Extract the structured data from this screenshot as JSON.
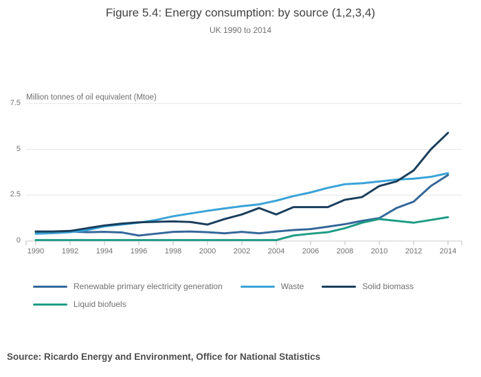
{
  "header": {
    "title": "Figure 5.4: Energy consumption: by source (1,2,3,4)",
    "subtitle": "UK 1990 to 2014"
  },
  "chart_data": {
    "type": "line",
    "title": "Figure 5.4: Energy consumption: by source (1,2,3,4)",
    "subtitle": "UK 1990 to 2014",
    "ylabel": "Million tonnes of oil equivalent (Mtoe)",
    "xlabel": "",
    "grid": "horizontal",
    "legend_position": "bottom-left",
    "xlim": [
      1990,
      2014
    ],
    "ylim": [
      0,
      7.5
    ],
    "y_ticks": [
      0,
      2.5,
      5,
      7.5
    ],
    "x_tick_labels": [
      "1990",
      "1992",
      "1994",
      "1996",
      "1998",
      "2000",
      "2002",
      "2004",
      "2006",
      "2008",
      "2010",
      "2012",
      "2014"
    ],
    "x": [
      1990,
      1991,
      1992,
      1993,
      1994,
      1995,
      1996,
      1997,
      1998,
      1999,
      2000,
      2001,
      2002,
      2003,
      2004,
      2005,
      2006,
      2007,
      2008,
      2009,
      2010,
      2011,
      2012,
      2013,
      2014
    ],
    "series": [
      {
        "name": "Renewable primary electricity generation",
        "color": "#35679a",
        "values": [
          0.5,
          0.48,
          0.52,
          0.48,
          0.5,
          0.47,
          0.3,
          0.4,
          0.5,
          0.52,
          0.48,
          0.42,
          0.5,
          0.42,
          0.52,
          0.6,
          0.65,
          0.78,
          0.92,
          1.1,
          1.25,
          1.8,
          2.15,
          3.0,
          3.6
        ]
      },
      {
        "name": "Waste",
        "color": "#39a3d7",
        "values": [
          0.4,
          0.43,
          0.48,
          0.6,
          0.8,
          0.9,
          1.0,
          1.15,
          1.35,
          1.5,
          1.65,
          1.78,
          1.9,
          2.0,
          2.2,
          2.45,
          2.65,
          2.9,
          3.1,
          3.15,
          3.25,
          3.35,
          3.4,
          3.5,
          3.7
        ]
      },
      {
        "name": "Solid biomass",
        "color": "#1a3e5c",
        "values": [
          0.52,
          0.52,
          0.55,
          0.7,
          0.85,
          0.95,
          1.02,
          1.05,
          1.07,
          1.04,
          0.9,
          1.2,
          1.45,
          1.8,
          1.45,
          1.85,
          1.85,
          1.85,
          2.25,
          2.4,
          3.0,
          3.25,
          3.85,
          5.0,
          5.9
        ]
      },
      {
        "name": "Liquid biofuels",
        "color": "#1e9c85",
        "values": [
          0.05,
          0.05,
          0.05,
          0.05,
          0.05,
          0.05,
          0.05,
          0.05,
          0.05,
          0.05,
          0.05,
          0.05,
          0.05,
          0.05,
          0.05,
          0.3,
          0.4,
          0.48,
          0.7,
          1.0,
          1.2,
          1.1,
          1.0,
          1.15,
          1.3
        ]
      }
    ],
    "colors": {
      "grid_line": "#e6e6e6",
      "axis_line": "#c9c9c9",
      "tick_mark": "#bdbdbd",
      "axis_text": "#6f6f6f",
      "title_text": "#3f3f3f"
    }
  },
  "legend_rows": [
    [
      0,
      1,
      2
    ],
    [
      3
    ]
  ],
  "source": {
    "text": "Source: Ricardo Energy and Environment, Office for National Statistics"
  }
}
